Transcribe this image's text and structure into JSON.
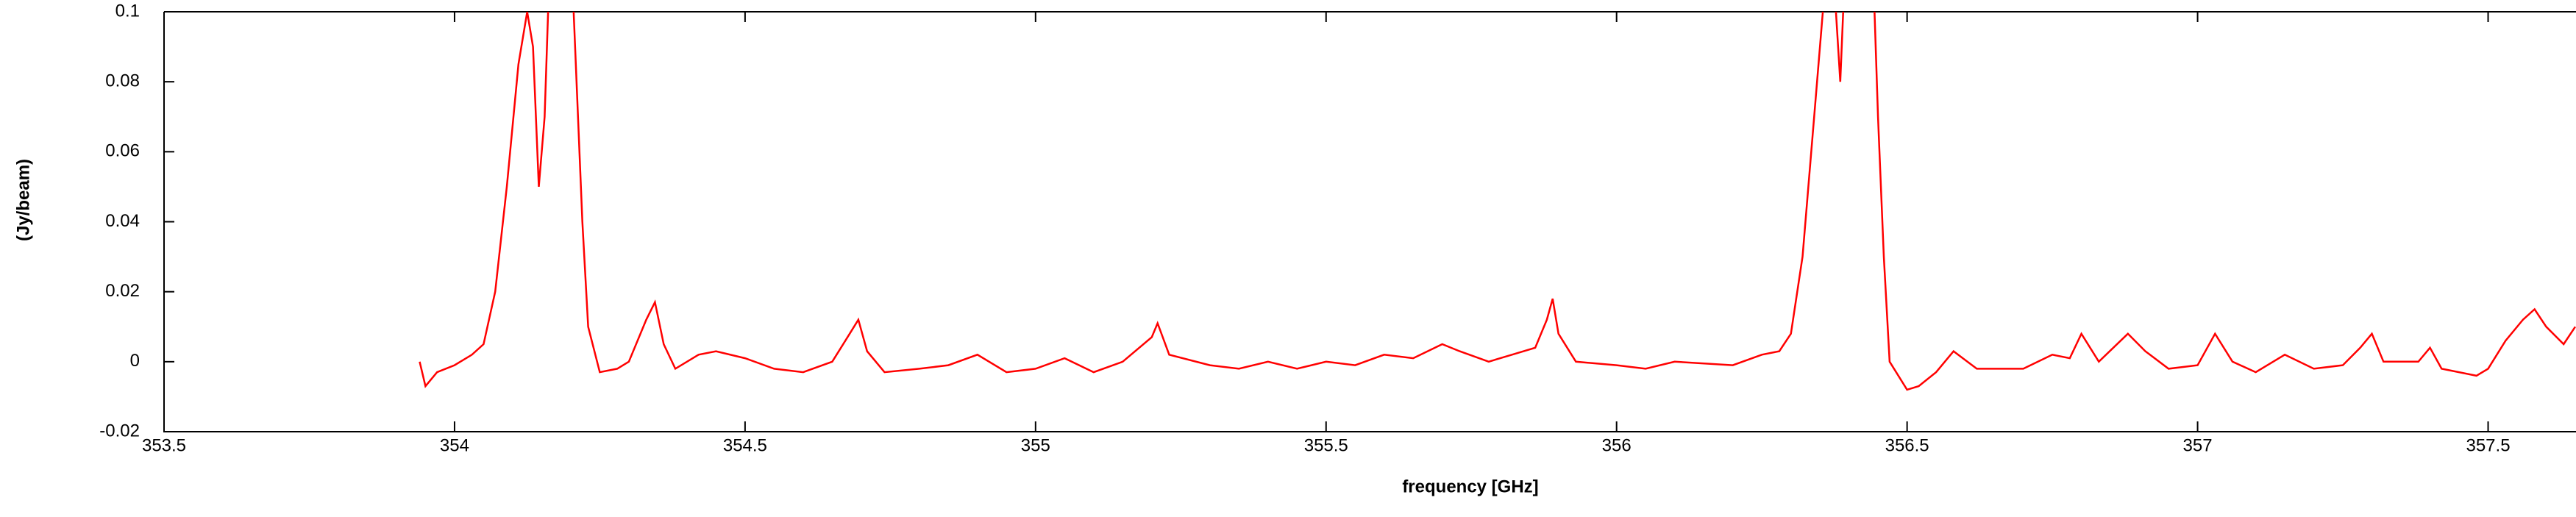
{
  "chart_data": {
    "type": "line",
    "xlabel": "frequency [GHz]",
    "ylabel": "(Jy/beam)",
    "xlim": [
      353.5,
      357.65
    ],
    "ylim": [
      -0.02,
      0.1
    ],
    "xticks": [
      353.5,
      354,
      354.5,
      355,
      355.5,
      356,
      356.5,
      357,
      357.5
    ],
    "yticks": [
      -0.02,
      0,
      0.02,
      0.04,
      0.06,
      0.08,
      0.1
    ],
    "series": [
      {
        "color": "#ff0000",
        "x": [
          353.94,
          353.95,
          353.97,
          354.0,
          354.03,
          354.05,
          354.07,
          354.09,
          354.11,
          354.125,
          354.135,
          354.145,
          354.155,
          354.165,
          354.2,
          354.21,
          354.22,
          354.23,
          354.25,
          354.28,
          354.3,
          354.33,
          354.345,
          354.36,
          354.38,
          354.42,
          354.45,
          354.5,
          354.55,
          354.6,
          354.65,
          354.68,
          354.695,
          354.71,
          354.74,
          354.8,
          354.85,
          354.9,
          354.95,
          355.0,
          355.05,
          355.1,
          355.15,
          355.2,
          355.21,
          355.23,
          355.3,
          355.35,
          355.4,
          355.45,
          355.5,
          355.55,
          355.6,
          355.65,
          355.7,
          355.73,
          355.78,
          355.82,
          355.86,
          355.88,
          355.89,
          355.9,
          355.93,
          356.0,
          356.05,
          356.1,
          356.2,
          356.25,
          356.28,
          356.3,
          356.32,
          356.34,
          356.355,
          356.37,
          356.385,
          356.395,
          356.44,
          356.45,
          356.46,
          356.47,
          356.5,
          356.52,
          356.55,
          356.58,
          356.62,
          356.7,
          356.75,
          356.78,
          356.8,
          356.83,
          356.88,
          356.91,
          356.95,
          357.0,
          357.03,
          357.06,
          357.1,
          357.15,
          357.2,
          357.25,
          357.28,
          357.3,
          357.32,
          357.38,
          357.4,
          357.42,
          357.45,
          357.48,
          357.5,
          357.53,
          357.56,
          357.58,
          357.6,
          357.63,
          357.65
        ],
        "values": [
          0,
          -0.007,
          -0.003,
          -0.001,
          0.002,
          0.005,
          0.02,
          0.05,
          0.085,
          0.1,
          0.09,
          0.05,
          0.07,
          0.12,
          0.12,
          0.08,
          0.04,
          0.01,
          -0.003,
          -0.002,
          0,
          0.012,
          0.017,
          0.005,
          -0.002,
          0.002,
          0.003,
          0.001,
          -0.002,
          -0.003,
          0,
          0.008,
          0.012,
          0.003,
          -0.003,
          -0.002,
          -0.001,
          0.002,
          -0.003,
          -0.002,
          0.001,
          -0.003,
          0,
          0.007,
          0.011,
          0.002,
          -0.001,
          -0.002,
          0,
          -0.002,
          0,
          -0.001,
          0.002,
          0.001,
          0.005,
          0.003,
          0,
          0.002,
          0.004,
          0.012,
          0.018,
          0.008,
          0,
          -0.001,
          -0.002,
          0,
          -0.001,
          0.002,
          0.003,
          0.008,
          0.03,
          0.07,
          0.1,
          0.12,
          0.08,
          0.12,
          0.12,
          0.07,
          0.03,
          0,
          -0.008,
          -0.007,
          -0.003,
          0.003,
          -0.002,
          -0.002,
          0.002,
          0.001,
          0.008,
          0,
          0.008,
          0.003,
          -0.002,
          -0.001,
          0.008,
          0,
          -0.003,
          0.002,
          -0.002,
          -0.001,
          0.004,
          0.008,
          0,
          0,
          0.004,
          -0.002,
          -0.003,
          -0.004,
          -0.002,
          0.006,
          0.012,
          0.015,
          0.01,
          0.005,
          0.01
        ]
      }
    ]
  }
}
